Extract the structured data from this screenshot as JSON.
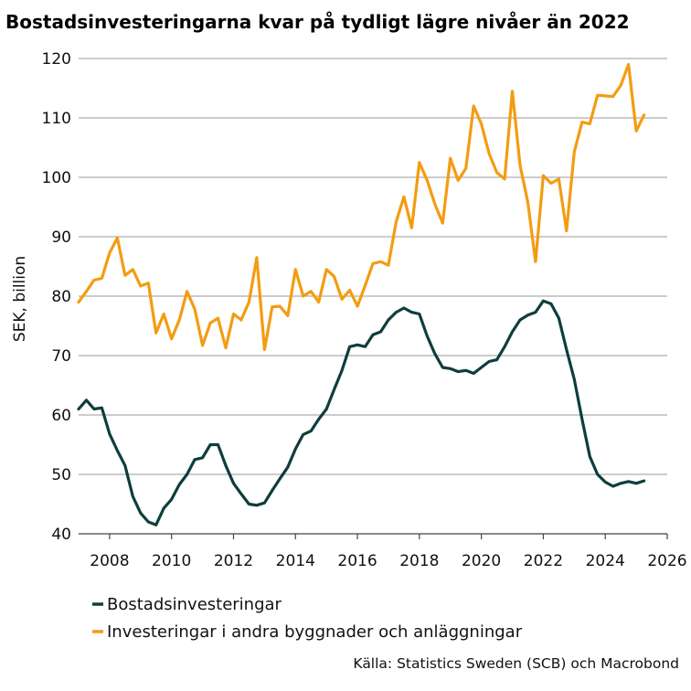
{
  "chart_data": {
    "type": "line",
    "title": "Bostadsinvesteringarna kvar på tydligt lägre nivåer än 2022",
    "xlabel": "",
    "ylabel": "SEK, billion",
    "xlim": [
      2007,
      2026
    ],
    "ylim": [
      40,
      120
    ],
    "xticks": [
      "2008",
      "2010",
      "2012",
      "2014",
      "2016",
      "2018",
      "2020",
      "2022",
      "2024",
      "2026"
    ],
    "yticks": [
      "40",
      "50",
      "60",
      "70",
      "80",
      "90",
      "100",
      "110",
      "120"
    ],
    "grid": "horizontal",
    "legend_position": "bottom-left",
    "source": "Källa: Statistics Sweden (SCB) och Macrobond",
    "colors": {
      "bostad": "#0f3d3e",
      "andra": "#f39c12",
      "grid": "#9a9a9a"
    },
    "series": [
      {
        "name": "Bostadsinvesteringar",
        "color": "#0f3d3e",
        "x": [
          2007.0,
          2007.25,
          2007.5,
          2007.75,
          2008.0,
          2008.25,
          2008.5,
          2008.75,
          2009.0,
          2009.25,
          2009.5,
          2009.75,
          2010.0,
          2010.25,
          2010.5,
          2010.75,
          2011.0,
          2011.25,
          2011.5,
          2011.75,
          2012.0,
          2012.25,
          2012.5,
          2012.75,
          2013.0,
          2013.25,
          2013.5,
          2013.75,
          2014.0,
          2014.25,
          2014.5,
          2014.75,
          2015.0,
          2015.25,
          2015.5,
          2015.75,
          2016.0,
          2016.25,
          2016.5,
          2016.75,
          2017.0,
          2017.25,
          2017.5,
          2017.75,
          2018.0,
          2018.25,
          2018.5,
          2018.75,
          2019.0,
          2019.25,
          2019.5,
          2019.75,
          2020.0,
          2020.25,
          2020.5,
          2020.75,
          2021.0,
          2021.25,
          2021.5,
          2021.75,
          2022.0,
          2022.25,
          2022.5,
          2022.75,
          2023.0,
          2023.25,
          2023.5,
          2023.75,
          2024.0,
          2024.25,
          2024.5,
          2024.75,
          2025.0,
          2025.25
        ],
        "values": [
          61.0,
          62.5,
          61.0,
          61.2,
          56.8,
          54.0,
          51.5,
          46.3,
          43.5,
          42.0,
          41.5,
          44.3,
          45.8,
          48.3,
          50.0,
          52.5,
          52.8,
          55.0,
          55.0,
          51.5,
          48.5,
          46.7,
          45.0,
          44.8,
          45.2,
          47.3,
          49.3,
          51.2,
          54.3,
          56.7,
          57.3,
          59.3,
          61.0,
          64.3,
          67.5,
          71.5,
          71.8,
          71.5,
          73.5,
          74.0,
          76.0,
          77.3,
          78.0,
          77.3,
          77.0,
          73.3,
          70.3,
          68.0,
          67.8,
          67.3,
          67.5,
          67.0,
          68.0,
          69.0,
          69.3,
          71.5,
          74.0,
          76.0,
          76.8,
          77.3,
          79.2,
          78.7,
          76.3,
          71.0,
          66.0,
          59.3,
          53.0,
          50.0,
          48.7,
          48.0,
          48.5,
          48.8,
          48.5,
          48.9
        ]
      },
      {
        "name": "Investeringar i andra byggnader och anläggningar",
        "color": "#f39c12",
        "x": [
          2007.0,
          2007.25,
          2007.5,
          2007.75,
          2008.0,
          2008.25,
          2008.5,
          2008.75,
          2009.0,
          2009.25,
          2009.5,
          2009.75,
          2010.0,
          2010.25,
          2010.5,
          2010.75,
          2011.0,
          2011.25,
          2011.5,
          2011.75,
          2012.0,
          2012.25,
          2012.5,
          2012.75,
          2013.0,
          2013.25,
          2013.5,
          2013.75,
          2014.0,
          2014.25,
          2014.5,
          2014.75,
          2015.0,
          2015.25,
          2015.5,
          2015.75,
          2016.0,
          2016.25,
          2016.5,
          2016.75,
          2017.0,
          2017.25,
          2017.5,
          2017.75,
          2018.0,
          2018.25,
          2018.5,
          2018.75,
          2019.0,
          2019.25,
          2019.5,
          2019.75,
          2020.0,
          2020.25,
          2020.5,
          2020.75,
          2021.0,
          2021.25,
          2021.5,
          2021.75,
          2022.0,
          2022.25,
          2022.5,
          2022.75,
          2023.0,
          2023.25,
          2023.5,
          2023.75,
          2024.0,
          2024.25,
          2024.5,
          2024.75,
          2025.0,
          2025.25
        ],
        "values": [
          79.0,
          80.8,
          82.7,
          83.0,
          87.3,
          89.8,
          83.5,
          84.5,
          81.7,
          82.2,
          73.8,
          77.0,
          72.8,
          76.0,
          80.8,
          77.8,
          71.7,
          75.5,
          76.3,
          71.3,
          77.0,
          76.0,
          79.0,
          86.5,
          71.0,
          78.2,
          78.3,
          76.7,
          84.5,
          80.0,
          80.8,
          79.0,
          84.5,
          83.3,
          79.5,
          81.0,
          78.3,
          81.8,
          85.5,
          85.8,
          85.2,
          92.5,
          96.7,
          91.5,
          102.5,
          99.5,
          95.5,
          92.3,
          103.2,
          99.5,
          101.5,
          112.0,
          109.0,
          104.0,
          100.8,
          99.7,
          114.5,
          102.0,
          95.8,
          85.8,
          100.3,
          99.0,
          99.7,
          91.0,
          104.3,
          109.3,
          109.0,
          113.8,
          113.7,
          113.6,
          115.5,
          119.0,
          107.8,
          110.5
        ]
      }
    ]
  }
}
